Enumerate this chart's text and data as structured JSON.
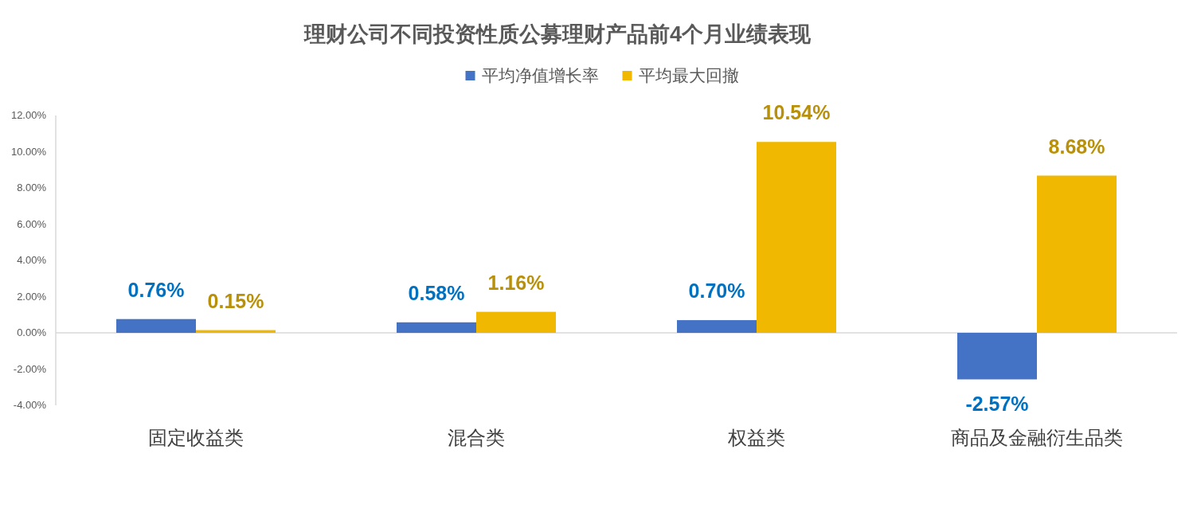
{
  "chart_data": {
    "type": "bar",
    "title": "理财公司不同投资性质公募理财产品前4个月业绩表现",
    "categories": [
      "固定收益类",
      "混合类",
      "权益类",
      "商品及金融衍生品类"
    ],
    "series": [
      {
        "name": "平均净值增长率",
        "color": "#4472c4",
        "values": [
          0.76,
          0.58,
          0.7,
          -2.57
        ],
        "value_labels": [
          "0.76%",
          "0.58%",
          "0.70%",
          "-2.57%"
        ]
      },
      {
        "name": "平均最大回撤",
        "color": "#f0b800",
        "values": [
          0.15,
          1.16,
          10.54,
          8.68
        ],
        "value_labels": [
          "0.15%",
          "1.16%",
          "10.54%",
          "8.68%"
        ]
      }
    ],
    "ylim": [
      -4,
      12
    ],
    "yticks": [
      {
        "value": -4,
        "label": "-4.00%"
      },
      {
        "value": -2,
        "label": "-2.00%"
      },
      {
        "value": 0,
        "label": "0.00%"
      },
      {
        "value": 2,
        "label": "2.00%"
      },
      {
        "value": 4,
        "label": "4.00%"
      },
      {
        "value": 6,
        "label": "6.00%"
      },
      {
        "value": 8,
        "label": "8.00%"
      },
      {
        "value": 10,
        "label": "10.00%"
      },
      {
        "value": 12,
        "label": "12.00%"
      }
    ],
    "legend": "top"
  }
}
